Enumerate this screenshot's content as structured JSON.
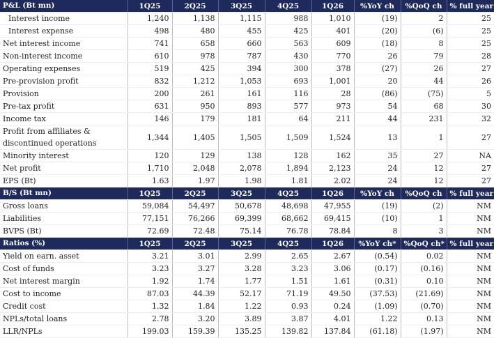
{
  "sections": [
    {
      "header": [
        "P&L (Bt mn)",
        "1Q25",
        "2Q25",
        "3Q25",
        "4Q25",
        "1Q26",
        "%YoY ch",
        "%QoQ ch",
        "% full year"
      ],
      "rows": [
        [
          "Interest income",
          "1,240",
          "1,138",
          "1,115",
          "988",
          "1,010",
          "(19)",
          "2",
          "25"
        ],
        [
          "Interest expense",
          "498",
          "480",
          "455",
          "425",
          "401",
          "(20)",
          "(6)",
          "25"
        ],
        [
          "Net interest income",
          "741",
          "658",
          "660",
          "563",
          "609",
          "(18)",
          "8",
          "25"
        ],
        [
          "Non-interest income",
          "610",
          "978",
          "787",
          "430",
          "770",
          "26",
          "79",
          "28"
        ],
        [
          "Operating expenses",
          "519",
          "425",
          "394",
          "300",
          "378",
          "(27)",
          "26",
          "27"
        ],
        [
          "Pre-provision profit",
          "832",
          "1,212",
          "1,053",
          "693",
          "1,001",
          "20",
          "44",
          "26"
        ],
        [
          "Provision",
          "200",
          "261",
          "161",
          "116",
          "28",
          "(86)",
          "(75)",
          "5"
        ],
        [
          "Pre-tax profit",
          "631",
          "950",
          "893",
          "577",
          "973",
          "54",
          "68",
          "30"
        ],
        [
          "Income tax",
          "146",
          "179",
          "181",
          "64",
          "211",
          "44",
          "231",
          "32"
        ],
        [
          "Profit from affiliates & discontinued operations",
          "1,344",
          "1,405",
          "1,505",
          "1,509",
          "1,524",
          "13",
          "1",
          "27"
        ],
        [
          "Minority interest",
          "120",
          "129",
          "138",
          "128",
          "162",
          "35",
          "27",
          "NA"
        ],
        [
          "Net profit",
          "1,710",
          "2,048",
          "2,078",
          "1,894",
          "2,123",
          "24",
          "12",
          "27"
        ],
        [
          "EPS (Bt)",
          "1.63",
          "1.97",
          "1.98",
          "1.81",
          "2.02",
          "24",
          "12",
          "27"
        ]
      ]
    },
    {
      "header": [
        "B/S (Bt mn)",
        "1Q25",
        "2Q25",
        "3Q25",
        "4Q25",
        "1Q26",
        "%YoY ch",
        "%QoQ ch",
        "% full year"
      ],
      "rows": [
        [
          "Gross loans",
          "59,084",
          "54,497",
          "50,678",
          "48,698",
          "47,955",
          "(19)",
          "(2)",
          "NM"
        ],
        [
          "Liabilities",
          "77,151",
          "76,266",
          "69,399",
          "68,662",
          "69,415",
          "(10)",
          "1",
          "NM"
        ],
        [
          "BVPS (Bt)",
          "72.69",
          "72.48",
          "75.14",
          "76.78",
          "78.84",
          "8",
          "3",
          "NM"
        ]
      ]
    },
    {
      "header": [
        "Ratios (%)",
        "1Q25",
        "2Q25",
        "3Q25",
        "4Q25",
        "1Q26",
        "%YoY ch*",
        "%QoQ ch*",
        "% full year"
      ],
      "rows": [
        [
          "Yield on earn. asset",
          "3.21",
          "3.01",
          "2.99",
          "2.65",
          "2.67",
          "(0.54)",
          "0.02",
          "NM"
        ],
        [
          "Cost of funds",
          "3.23",
          "3.27",
          "3.28",
          "3.23",
          "3.06",
          "(0.17)",
          "(0.16)",
          "NM"
        ],
        [
          "Net interest margin",
          "1.92",
          "1.74",
          "1.77",
          "1.51",
          "1.61",
          "(0.31)",
          "0.10",
          "NM"
        ],
        [
          "Cost to income",
          "87.03",
          "44.39",
          "52.17",
          "71.19",
          "49.50",
          "(37.53)",
          "(21.69)",
          "NM"
        ],
        [
          "Credit cost",
          "1.32",
          "1.84",
          "1.22",
          "0.93",
          "0.24",
          "(1.09)",
          "(0.70)",
          "NM"
        ],
        [
          "NPLs/total loans",
          "2.78",
          "3.20",
          "3.89",
          "3.87",
          "4.01",
          "1.22",
          "0.13",
          "NM"
        ],
        [
          "LLR/NPLs",
          "199.03",
          "159.39",
          "135.25",
          "139.82",
          "137.84",
          "(61.18)",
          "(1.97)",
          "NM"
        ]
      ]
    }
  ]
}
